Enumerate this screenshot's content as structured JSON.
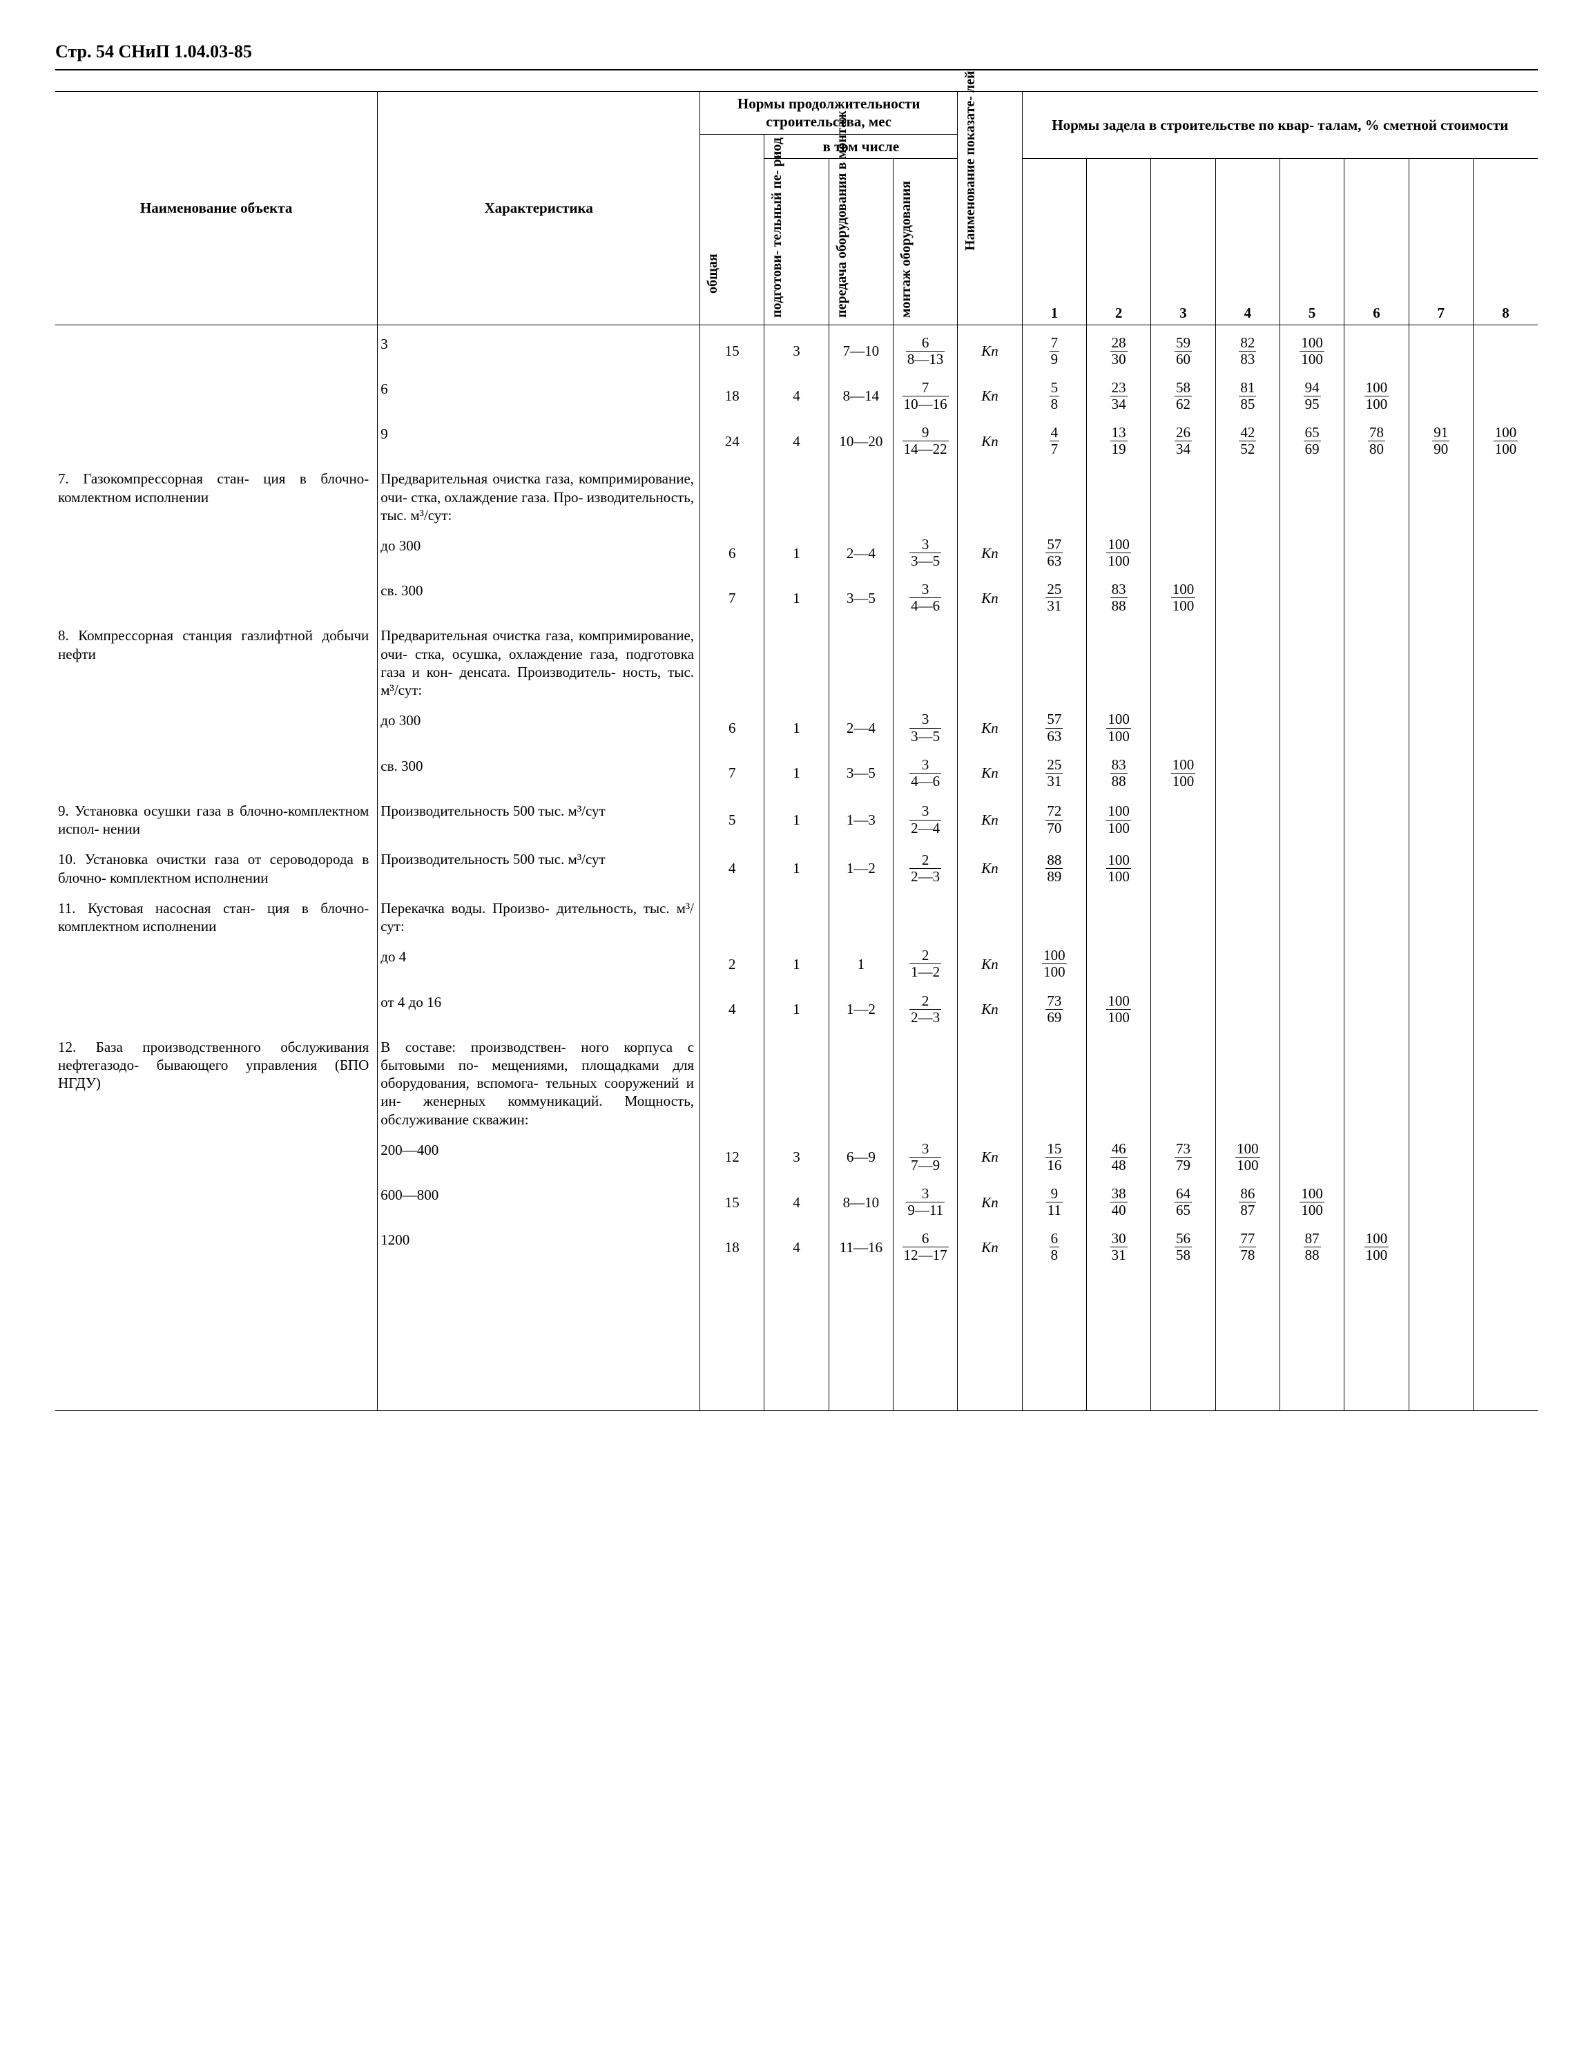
{
  "header": "Стр. 54 СНиП 1.04.03-85",
  "th": {
    "obj": "Наименование объекта",
    "char": "Характеристика",
    "norms_dur": "Нормы продолжительности строительства, мес",
    "incl": "в том числе",
    "total": "общая",
    "prep": "подготови-\nтельный пе-\nриод",
    "trans": "передача\nоборудования\nв монтаж",
    "mount": "монтаж\nоборудования",
    "ind": "Наименование показате-\nлей",
    "backlog": "Нормы задела в строительстве по квар-\nталам, % сметной стоимости",
    "q": [
      "1",
      "2",
      "3",
      "4",
      "5",
      "6",
      "7",
      "8"
    ]
  },
  "kp": "Кп",
  "rows": [
    {
      "obj": "",
      "char": "3",
      "total": "15",
      "prep": "3",
      "trans": "7—10",
      "mount_n": "6",
      "mount_d": "8—13",
      "q": [
        [
          "7",
          "9"
        ],
        [
          "28",
          "30"
        ],
        [
          "59",
          "60"
        ],
        [
          "82",
          "83"
        ],
        [
          "100",
          "100"
        ],
        null,
        null,
        null
      ]
    },
    {
      "obj": "",
      "char": "6",
      "total": "18",
      "prep": "4",
      "trans": "8—14",
      "mount_n": "7",
      "mount_d": "10—16",
      "q": [
        [
          "5",
          "8"
        ],
        [
          "23",
          "34"
        ],
        [
          "58",
          "62"
        ],
        [
          "81",
          "85"
        ],
        [
          "94",
          "95"
        ],
        [
          "100",
          "100"
        ],
        null,
        null
      ]
    },
    {
      "obj": "",
      "char": "9",
      "total": "24",
      "prep": "4",
      "trans": "10—20",
      "mount_n": "9",
      "mount_d": "14—22",
      "q": [
        [
          "4",
          "7"
        ],
        [
          "13",
          "19"
        ],
        [
          "26",
          "34"
        ],
        [
          "42",
          "52"
        ],
        [
          "65",
          "69"
        ],
        [
          "78",
          "80"
        ],
        [
          "91",
          "90"
        ],
        [
          "100",
          "100"
        ]
      ]
    },
    {
      "obj": "7. Газокомпрессорная стан-\nция в блочно-комлектном исполнении",
      "char": "Предварительная очистка газа, компримирование, очи-\nстка, охлаждение газа. Про-\nизводительность, тыс. м³/сут:",
      "total": "",
      "prep": "",
      "trans": "",
      "mount_n": "",
      "mount_d": "",
      "q": [
        null,
        null,
        null,
        null,
        null,
        null,
        null,
        null
      ],
      "nokp": true
    },
    {
      "obj": "",
      "char": "до 300",
      "total": "6",
      "prep": "1",
      "trans": "2—4",
      "mount_n": "3",
      "mount_d": "3—5",
      "q": [
        [
          "57",
          "63"
        ],
        [
          "100",
          "100"
        ],
        null,
        null,
        null,
        null,
        null,
        null
      ]
    },
    {
      "obj": "",
      "char": "св. 300",
      "total": "7",
      "prep": "1",
      "trans": "3—5",
      "mount_n": "3",
      "mount_d": "4—6",
      "q": [
        [
          "25",
          "31"
        ],
        [
          "83",
          "88"
        ],
        [
          "100",
          "100"
        ],
        null,
        null,
        null,
        null,
        null
      ]
    },
    {
      "obj": "8. Компрессорная станция газлифтной добычи нефти",
      "char": "Предварительная очистка газа, компримирование, очи-\nстка, осушка, охлаждение газа, подготовка газа и кон-\nденсата. Производитель-\nность, тыс. м³/сут:",
      "total": "",
      "prep": "",
      "trans": "",
      "mount_n": "",
      "mount_d": "",
      "q": [
        null,
        null,
        null,
        null,
        null,
        null,
        null,
        null
      ],
      "nokp": true
    },
    {
      "obj": "",
      "char": "до 300",
      "total": "6",
      "prep": "1",
      "trans": "2—4",
      "mount_n": "3",
      "mount_d": "3—5",
      "q": [
        [
          "57",
          "63"
        ],
        [
          "100",
          "100"
        ],
        null,
        null,
        null,
        null,
        null,
        null
      ]
    },
    {
      "obj": "",
      "char": "св. 300",
      "total": "7",
      "prep": "1",
      "trans": "3—5",
      "mount_n": "3",
      "mount_d": "4—6",
      "q": [
        [
          "25",
          "31"
        ],
        [
          "83",
          "88"
        ],
        [
          "100",
          "100"
        ],
        null,
        null,
        null,
        null,
        null
      ]
    },
    {
      "obj": "9. Установка осушки газа в блочно-комплектном испол-\nнении",
      "char": "Производительность 500 тыс. м³/сут",
      "total": "5",
      "prep": "1",
      "trans": "1—3",
      "mount_n": "3",
      "mount_d": "2—4",
      "q": [
        [
          "72",
          "70"
        ],
        [
          "100",
          "100"
        ],
        null,
        null,
        null,
        null,
        null,
        null
      ]
    },
    {
      "obj": "10. Установка очистки газа от сероводорода в блочно-\nкомплектном исполнении",
      "char": "Производительность 500 тыс. м³/сут",
      "total": "4",
      "prep": "1",
      "trans": "1—2",
      "mount_n": "2",
      "mount_d": "2—3",
      "q": [
        [
          "88",
          "89"
        ],
        [
          "100",
          "100"
        ],
        null,
        null,
        null,
        null,
        null,
        null
      ]
    },
    {
      "obj": "11. Кустовая насосная стан-\nция в блочно-комплектном исполнении",
      "char": "Перекачка воды. Произво-\nдительность, тыс. м³/сут:",
      "total": "",
      "prep": "",
      "trans": "",
      "mount_n": "",
      "mount_d": "",
      "q": [
        null,
        null,
        null,
        null,
        null,
        null,
        null,
        null
      ],
      "nokp": true
    },
    {
      "obj": "",
      "char": "до 4",
      "total": "2",
      "prep": "1",
      "trans": "1",
      "mount_n": "2",
      "mount_d": "1—2",
      "q": [
        [
          "100",
          "100"
        ],
        null,
        null,
        null,
        null,
        null,
        null,
        null
      ]
    },
    {
      "obj": "",
      "char": "от 4 до 16",
      "total": "4",
      "prep": "1",
      "trans": "1—2",
      "mount_n": "2",
      "mount_d": "2—3",
      "q": [
        [
          "73",
          "69"
        ],
        [
          "100",
          "100"
        ],
        null,
        null,
        null,
        null,
        null,
        null
      ]
    },
    {
      "obj": "12. База производственного обслуживания нефтегазодо-\nбывающего управления (БПО НГДУ)",
      "char": "В составе: производствен-\nного корпуса с бытовыми по-\nмещениями, площадками для оборудования, вспомога-\nтельных сооружений и ин-\nженерных коммуникаций. Мощность, обслуживание скважин:",
      "total": "",
      "prep": "",
      "trans": "",
      "mount_n": "",
      "mount_d": "",
      "q": [
        null,
        null,
        null,
        null,
        null,
        null,
        null,
        null
      ],
      "nokp": true
    },
    {
      "obj": "",
      "char": "200—400",
      "total": "12",
      "prep": "3",
      "trans": "6—9",
      "mount_n": "3",
      "mount_d": "7—9",
      "q": [
        [
          "15",
          "16"
        ],
        [
          "46",
          "48"
        ],
        [
          "73",
          "79"
        ],
        [
          "100",
          "100"
        ],
        null,
        null,
        null,
        null
      ]
    },
    {
      "obj": "",
      "char": "600—800",
      "total": "15",
      "prep": "4",
      "trans": "8—10",
      "mount_n": "3",
      "mount_d": "9—11",
      "q": [
        [
          "9",
          "11"
        ],
        [
          "38",
          "40"
        ],
        [
          "64",
          "65"
        ],
        [
          "86",
          "87"
        ],
        [
          "100",
          "100"
        ],
        null,
        null,
        null
      ]
    },
    {
      "obj": "",
      "char": "1200",
      "total": "18",
      "prep": "4",
      "trans": "11—16",
      "mount_n": "6",
      "mount_d": "12—17",
      "q": [
        [
          "6",
          "8"
        ],
        [
          "30",
          "31"
        ],
        [
          "56",
          "58"
        ],
        [
          "77",
          "78"
        ],
        [
          "87",
          "88"
        ],
        [
          "100",
          "100"
        ],
        null,
        null
      ]
    }
  ]
}
